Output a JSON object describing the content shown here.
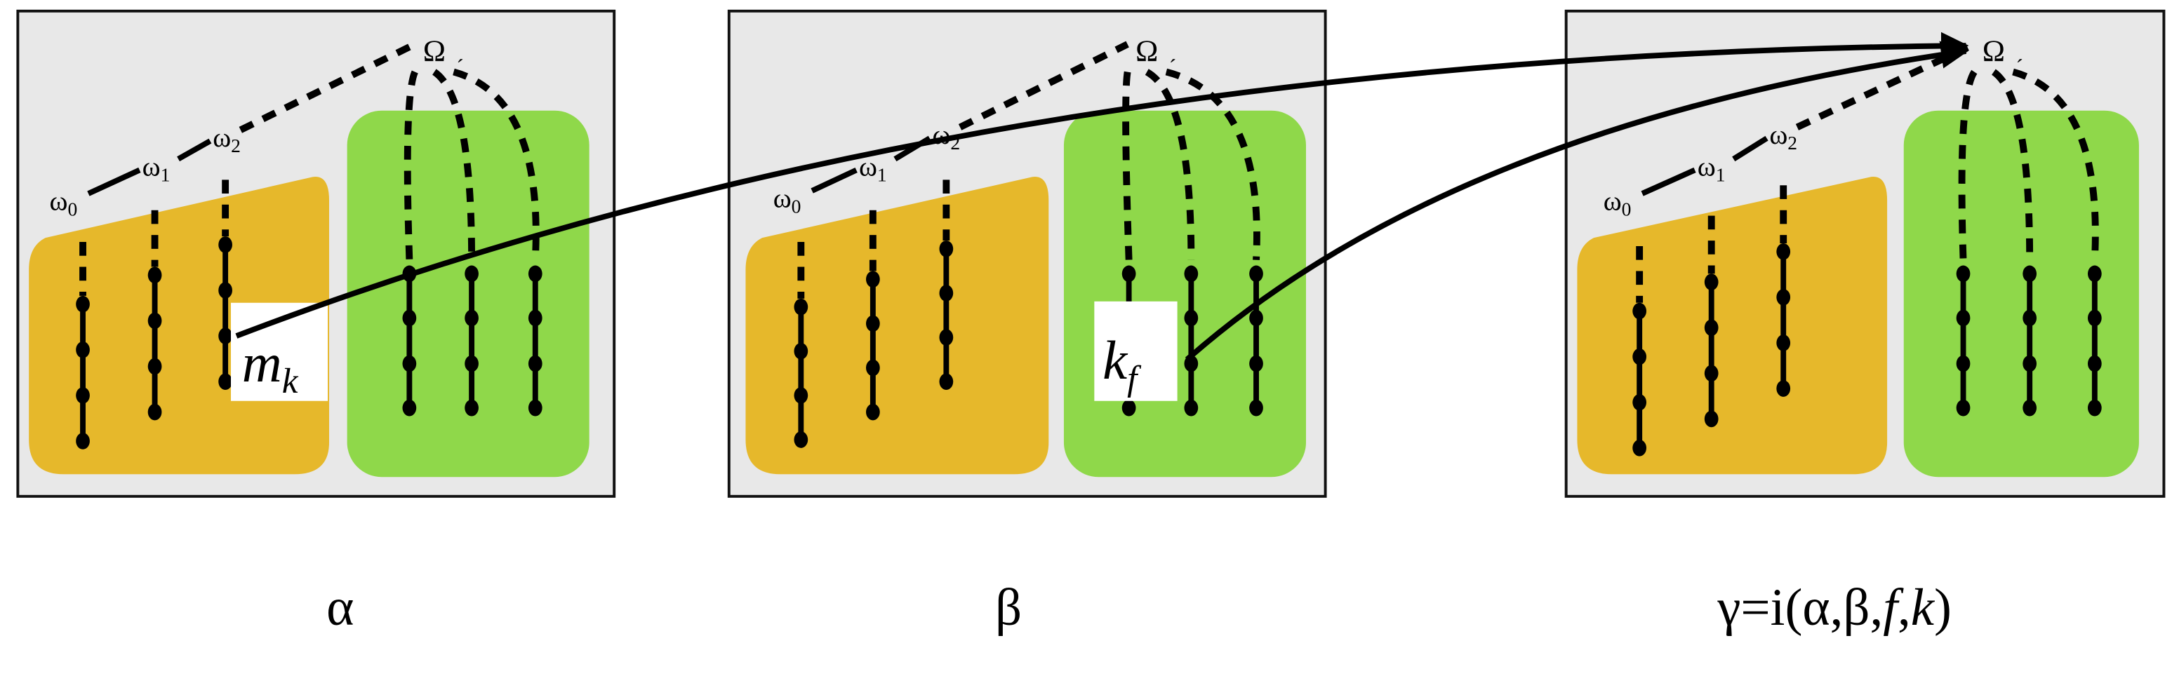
{
  "colors": {
    "panel_bg": "#e8e8e8",
    "panel_border": "#111111",
    "orange": "#e6b82b",
    "green": "#8fd84a",
    "ink": "#000000"
  },
  "nodes": {
    "omega": "Ω",
    "omega_prime": "´",
    "w0": "ω",
    "w0_sub": "0",
    "w1": "ω",
    "w1_sub": "1",
    "w2": "ω",
    "w2_sub": "2"
  },
  "annotations": {
    "mk_main": "m",
    "mk_sub": "k",
    "kf_main": "k",
    "kf_sub": "f"
  },
  "captions": {
    "alpha": "α",
    "beta": "β",
    "gamma": "γ=i(α,β,",
    "gamma_f": "f",
    "gamma_comma": ",",
    "gamma_k": "k",
    "gamma_close": ")"
  }
}
